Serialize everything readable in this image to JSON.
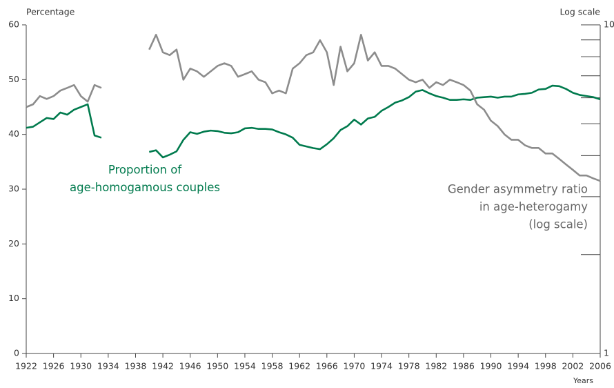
{
  "chart_data": {
    "type": "line",
    "y_label": "Percentage",
    "y2_label": "Log scale",
    "x_label": "Years",
    "x": [
      1922,
      1923,
      1924,
      1925,
      1926,
      1927,
      1928,
      1929,
      1930,
      1931,
      1932,
      1933,
      1934,
      1935,
      1936,
      1937,
      1938,
      1939,
      1940,
      1941,
      1942,
      1943,
      1944,
      1945,
      1946,
      1947,
      1948,
      1949,
      1950,
      1951,
      1952,
      1953,
      1954,
      1955,
      1956,
      1957,
      1958,
      1959,
      1960,
      1961,
      1962,
      1963,
      1964,
      1965,
      1966,
      1967,
      1968,
      1969,
      1970,
      1971,
      1972,
      1973,
      1974,
      1975,
      1976,
      1977,
      1978,
      1979,
      1980,
      1981,
      1982,
      1983,
      1984,
      1985,
      1986,
      1987,
      1988,
      1989,
      1990,
      1991,
      1992,
      1993,
      1994,
      1995,
      1996,
      1997,
      1998,
      1999,
      2000,
      2001,
      2002,
      2003,
      2004,
      2005,
      2006
    ],
    "xlim": [
      1922,
      2006
    ],
    "xticks": [
      1922,
      1926,
      1930,
      1934,
      1938,
      1942,
      1946,
      1950,
      1954,
      1958,
      1962,
      1966,
      1970,
      1974,
      1978,
      1982,
      1986,
      1990,
      1994,
      1998,
      2002,
      2006
    ],
    "ylim": [
      0,
      60
    ],
    "yticks": [
      0,
      10,
      20,
      30,
      40,
      50,
      60
    ],
    "y2lim": [
      1,
      10
    ],
    "y2ticks": [
      1,
      10
    ],
    "y2minorticks": [
      2,
      3,
      4,
      5,
      6,
      7,
      8,
      9
    ],
    "y2log": true,
    "series": [
      {
        "label_lines": [
          "Proportion of",
          "age-homogamous couples"
        ],
        "color": "#007a4d",
        "axis": "y",
        "values": [
          41.2,
          41.4,
          42.2,
          43,
          42.8,
          44,
          43.6,
          44.5,
          45,
          45.5,
          39.8,
          39.4,
          null,
          null,
          null,
          null,
          null,
          null,
          36.8,
          37.1,
          35.8,
          36.3,
          36.9,
          39,
          40.4,
          40.1,
          40.5,
          40.7,
          40.6,
          40.3,
          40.2,
          40.4,
          41.1,
          41.2,
          41,
          41,
          40.9,
          40.4,
          40,
          39.4,
          38.1,
          37.8,
          37.5,
          37.3,
          38.2,
          39.3,
          40.8,
          41.5,
          42.7,
          41.8,
          42.9,
          43.2,
          44.3,
          45,
          45.8,
          46.2,
          46.8,
          47.8,
          48.1,
          47.5,
          47,
          46.7,
          46.3,
          46.3,
          46.4,
          46.3,
          46.7,
          46.8,
          46.9,
          46.7,
          46.9,
          46.9,
          47.3,
          47.4,
          47.6,
          48.2,
          48.3,
          48.9,
          48.8,
          48.3,
          47.6,
          47.2,
          47,
          46.8,
          46.4
        ]
      },
      {
        "label_lines": [
          "Gender asymmetry ratio",
          "in age-heterogamy",
          "(log scale)"
        ],
        "color": "#8c8c8c",
        "axis": "y2",
        "values": [
          5.62,
          5.73,
          6.07,
          5.95,
          6.07,
          6.31,
          6.43,
          6.56,
          6.07,
          5.84,
          6.56,
          6.43,
          null,
          null,
          null,
          null,
          null,
          null,
          8.41,
          9.33,
          8.25,
          8.09,
          8.41,
          6.81,
          7.36,
          7.22,
          6.95,
          7.22,
          7.5,
          7.64,
          7.5,
          6.95,
          7.08,
          7.22,
          6.81,
          6.69,
          6.19,
          6.31,
          6.19,
          7.36,
          7.64,
          8.09,
          8.25,
          8.98,
          8.25,
          6.56,
          8.58,
          7.22,
          7.64,
          9.33,
          7.79,
          8.25,
          7.5,
          7.5,
          7.36,
          7.08,
          6.81,
          6.69,
          6.81,
          6.43,
          6.69,
          6.56,
          6.81,
          6.69,
          6.56,
          6.31,
          5.73,
          5.52,
          5.11,
          4.92,
          4.64,
          4.47,
          4.47,
          4.3,
          4.22,
          4.22,
          4.06,
          4.06,
          3.91,
          3.76,
          3.62,
          3.48,
          3.48,
          3.41,
          3.35
        ]
      }
    ]
  }
}
